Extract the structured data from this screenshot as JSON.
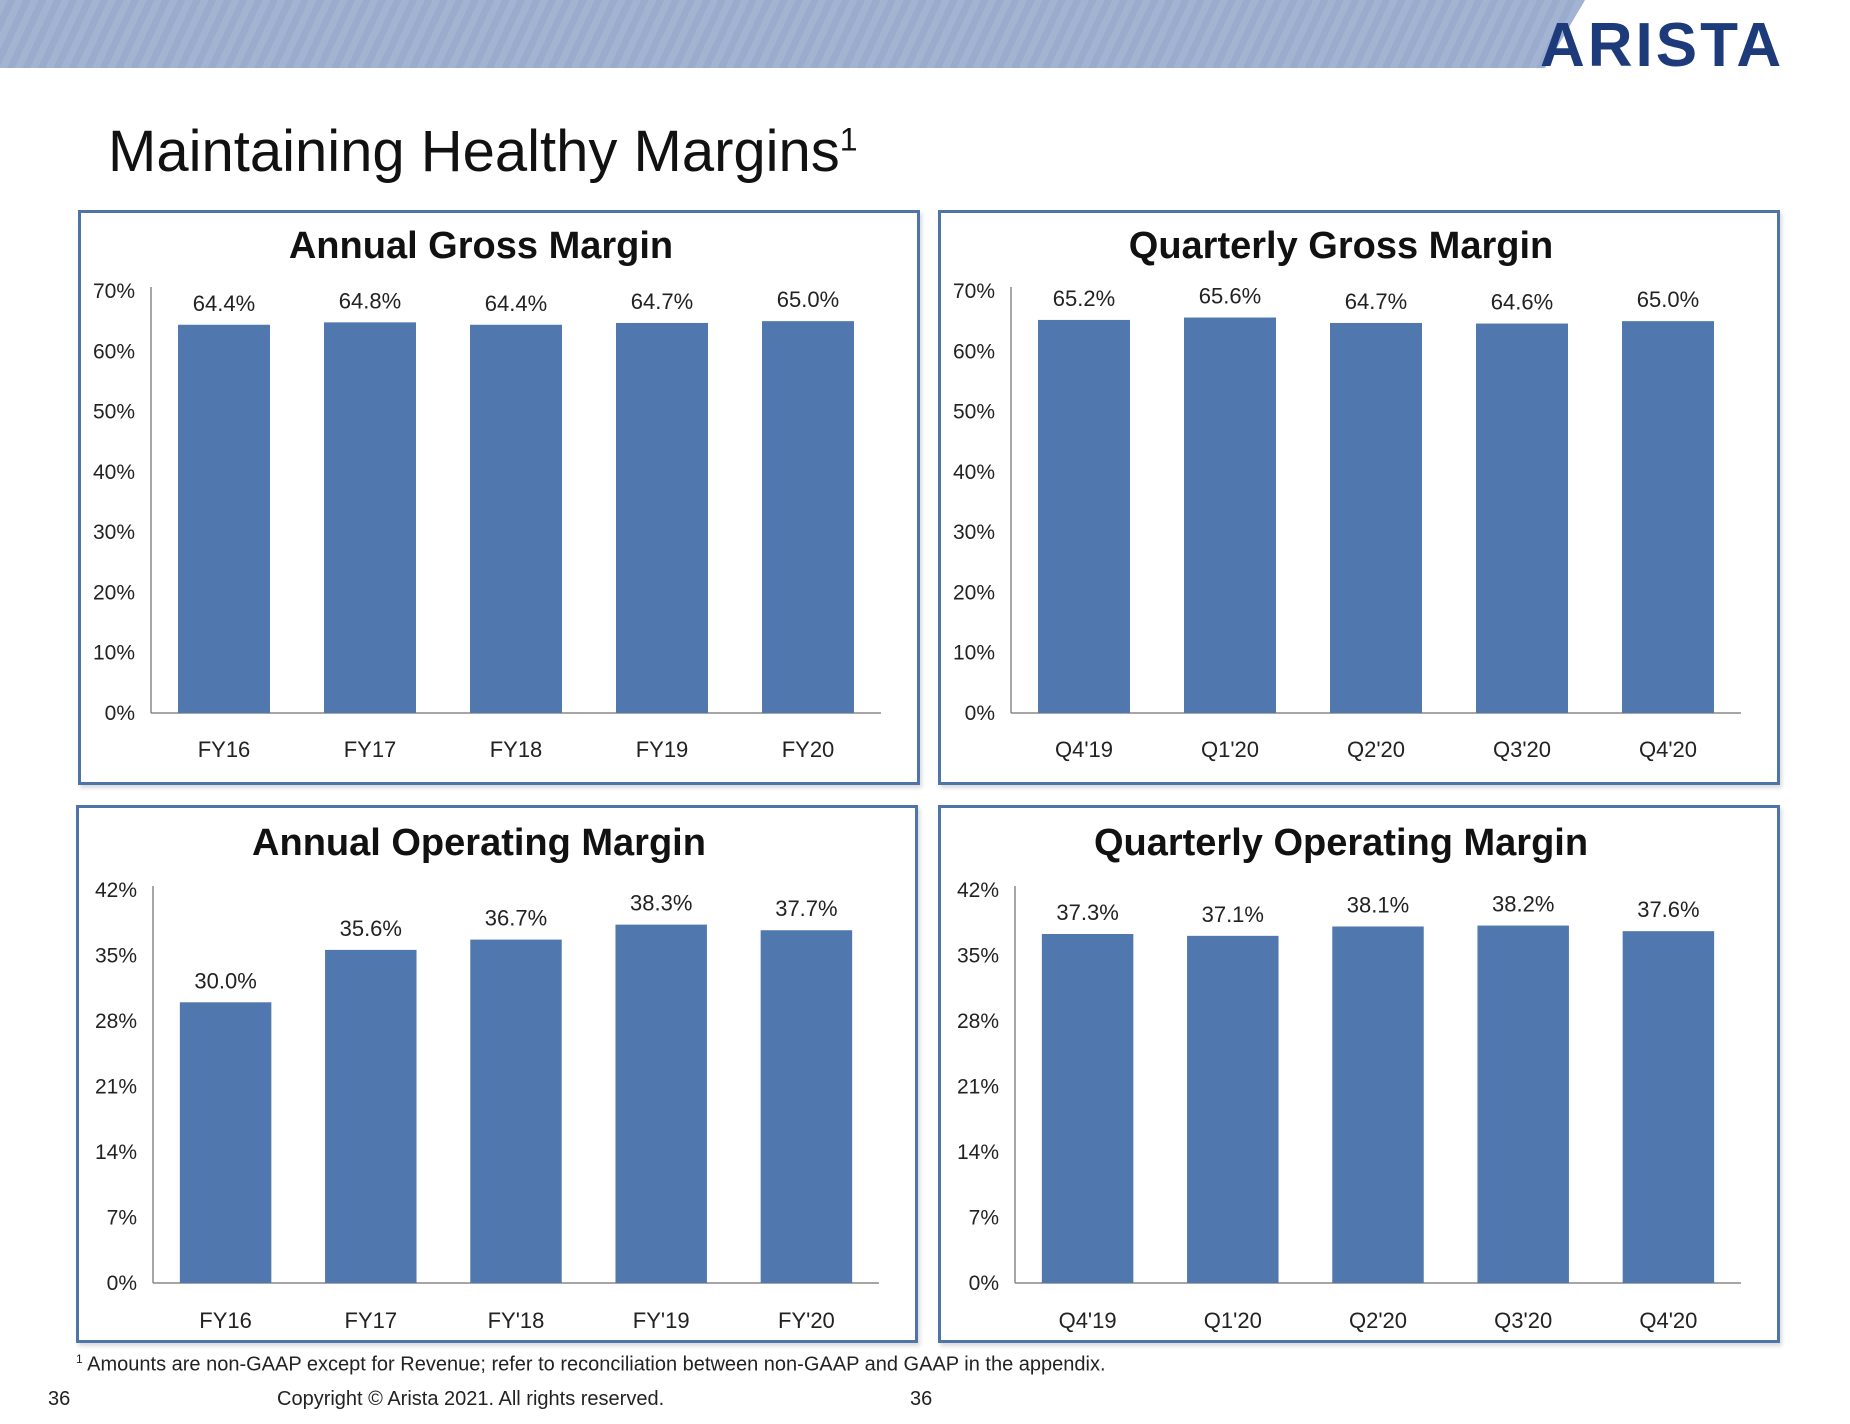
{
  "header": {
    "logo_text": "ARISTA",
    "title": "Maintaining Healthy Margins",
    "title_superscript": "1"
  },
  "colors": {
    "bar": "#5078af",
    "axis": "#888888",
    "panel_border": "#4f74a8",
    "logo": "#1d3a7a"
  },
  "chart_data": [
    {
      "type": "bar",
      "title": "Annual Gross Margin",
      "categories": [
        "FY16",
        "FY17",
        "FY18",
        "FY19",
        "FY20"
      ],
      "values": [
        64.4,
        64.8,
        64.4,
        64.7,
        65.0
      ],
      "value_labels": [
        "64.4%",
        "64.8%",
        "64.4%",
        "64.7%",
        "65.0%"
      ],
      "ylim": [
        0,
        70
      ],
      "yticks": [
        0,
        10,
        20,
        30,
        40,
        50,
        60,
        70
      ],
      "ytick_labels": [
        "0%",
        "10%",
        "20%",
        "30%",
        "40%",
        "50%",
        "60%",
        "70%"
      ],
      "grid": false
    },
    {
      "type": "bar",
      "title": "Quarterly Gross Margin",
      "categories": [
        "Q4'19",
        "Q1'20",
        "Q2'20",
        "Q3'20",
        "Q4'20"
      ],
      "values": [
        65.2,
        65.6,
        64.7,
        64.6,
        65.0
      ],
      "value_labels": [
        "65.2%",
        "65.6%",
        "64.7%",
        "64.6%",
        "65.0%"
      ],
      "ylim": [
        0,
        70
      ],
      "yticks": [
        0,
        10,
        20,
        30,
        40,
        50,
        60,
        70
      ],
      "ytick_labels": [
        "0%",
        "10%",
        "20%",
        "30%",
        "40%",
        "50%",
        "60%",
        "70%"
      ],
      "grid": false
    },
    {
      "type": "bar",
      "title": "Annual Operating Margin",
      "categories": [
        "FY16",
        "FY17",
        "FY'18",
        "FY'19",
        "FY'20"
      ],
      "values": [
        30.0,
        35.6,
        36.7,
        38.3,
        37.7
      ],
      "value_labels": [
        "30.0%",
        "35.6%",
        "36.7%",
        "38.3%",
        "37.7%"
      ],
      "ylim": [
        0,
        42
      ],
      "yticks": [
        0,
        7,
        14,
        21,
        28,
        35,
        42
      ],
      "ytick_labels": [
        "0%",
        "7%",
        "14%",
        "21%",
        "28%",
        "35%",
        "42%"
      ],
      "grid": false
    },
    {
      "type": "bar",
      "title": "Quarterly Operating Margin",
      "categories": [
        "Q4'19",
        "Q1'20",
        "Q2'20",
        "Q3'20",
        "Q4'20"
      ],
      "values": [
        37.3,
        37.1,
        38.1,
        38.2,
        37.6
      ],
      "value_labels": [
        "37.3%",
        "37.1%",
        "38.1%",
        "38.2%",
        "37.6%"
      ],
      "ylim": [
        0,
        42
      ],
      "yticks": [
        0,
        7,
        14,
        21,
        28,
        35,
        42
      ],
      "ytick_labels": [
        "0%",
        "7%",
        "14%",
        "21%",
        "28%",
        "35%",
        "42%"
      ],
      "grid": false
    }
  ],
  "footer": {
    "footnote_marker": "1",
    "footnote": "Amounts are non-GAAP except for Revenue; refer to reconciliation between non-GAAP and GAAP in the appendix.",
    "copyright": "Copyright © Arista 2021. All rights reserved.",
    "page_number": "36"
  }
}
